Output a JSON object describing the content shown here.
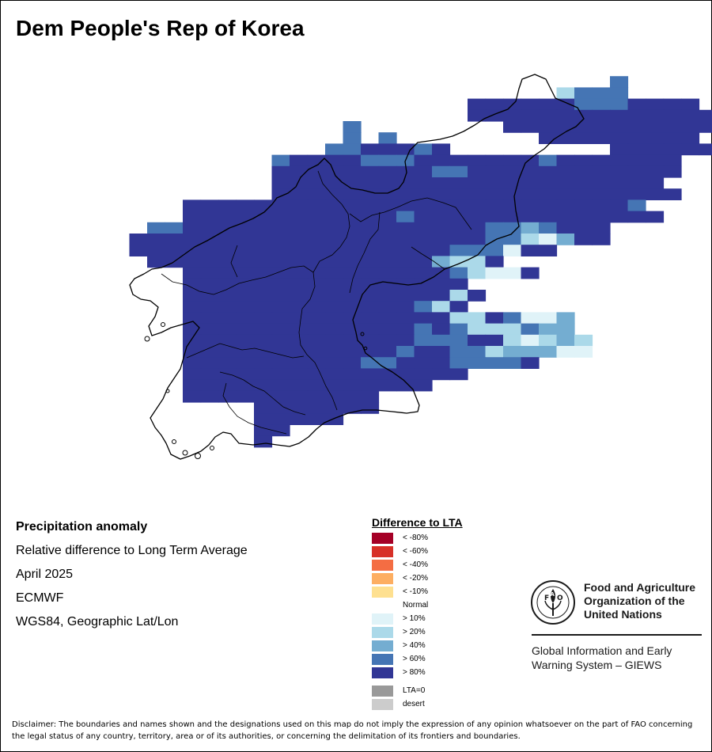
{
  "title": "Dem People's Rep of Korea",
  "info": {
    "heading": "Precipitation anomaly",
    "lines": [
      "Relative difference to Long Term Average",
      "April 2025",
      "ECMWF",
      "WGS84, Geographic Lat/Lon"
    ]
  },
  "legend": {
    "title": "Difference to LTA",
    "classes": [
      {
        "label": "< -80%",
        "color": "#a50026"
      },
      {
        "label": "< -60%",
        "color": "#d73027"
      },
      {
        "label": "< -40%",
        "color": "#f46d43"
      },
      {
        "label": "< -20%",
        "color": "#fdae61"
      },
      {
        "label": "< -10%",
        "color": "#fee090"
      },
      {
        "label": "Normal",
        "color": "#ffffff"
      },
      {
        "label": "> 10%",
        "color": "#e0f3f8"
      },
      {
        "label": "> 20%",
        "color": "#abd9e9"
      },
      {
        "label": "> 40%",
        "color": "#74add1"
      },
      {
        "label": "> 60%",
        "color": "#4575b4"
      },
      {
        "label": "> 80%",
        "color": "#313695"
      }
    ],
    "extra": [
      {
        "label": "LTA=0",
        "color": "#999999"
      },
      {
        "label": "desert",
        "color": "#cccccc"
      }
    ]
  },
  "map_cells": {
    "categories": [
      "> 80%",
      "> 60%",
      "> 40%",
      "> 20%",
      "> 10%",
      "Normal"
    ],
    "rows": [
      "........................................................",
      "..............................1..........",
      "...........................3111..........",
      "......................0000001110000.......",
      "......................00000000000000......",
      "...............1........0000000000000........",
      "...............1.1........000000000........",
      "..............1100010.........00000000........",
      "...........10000111000000010000000........",
      "...........00000000011000000000000........",
      "...........0000000000000000000000.........",
      "...........00000000000000000000000.........",
      "......00000000000000000000000001.........",
      "......000000000000100000000000000..........",
      "....11000000000000000001121000............",
      "...000000000000000000001134200.........",
      "...000000000000000000111400..............",
      "....00000000000000002330................",
      "......00000000000000013440...............",
      "......0000000000000000...................",
      "......00000000000000030..................",
      "......0000000000000130....",
      "......0000000000000003301442.....",
      "......0000000000000101333122...",
      "......00000000000001110034323..",
      "......00000000000010011322244..",
      "......00000000001100011110.....",
      "......0000000000000000.........",
      "......00000000000000...........",
      "......00000000000..............",
      "..........0000000..............",
      "..........00000................",
      "..........00....................",
      "..........0......................"
    ]
  }
}
